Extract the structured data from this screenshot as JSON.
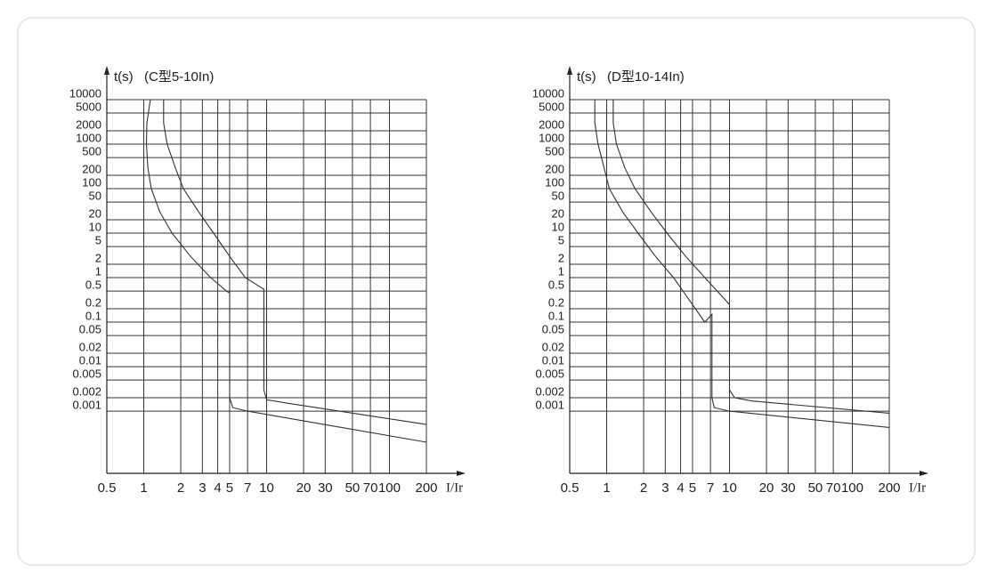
{
  "chart_data": [
    {
      "type": "line",
      "ylabel": "t(s)",
      "title": "(C型5-10In)",
      "xlabel": "I/Ir",
      "xlog": true,
      "ylog": true,
      "grid": true,
      "xlim": [
        0.5,
        200
      ],
      "ylim": [
        4e-05,
        10000
      ],
      "xticks": [
        0.5,
        1,
        2,
        3,
        4,
        5,
        7,
        10,
        20,
        30,
        50,
        70,
        100,
        200
      ],
      "yticks": [
        10000,
        5000,
        2000,
        1000,
        500,
        200,
        100,
        50,
        20,
        10,
        5,
        2,
        1,
        0.5,
        0.2,
        0.1,
        0.05,
        0.02,
        0.01,
        0.005,
        0.002,
        0.001
      ],
      "series": [
        {
          "color": "#333333",
          "x": [
            1.13,
            1.06,
            1.05,
            1.08,
            1.15,
            1.35,
            1.7,
            2.4,
            3.5,
            4.7,
            5,
            5,
            5.3,
            7,
            200
          ],
          "values": [
            10000,
            3000,
            1000,
            300,
            100,
            30,
            10,
            3,
            1,
            0.5,
            0.45,
            0.002,
            0.0012,
            0.001,
            0.0002
          ]
        },
        {
          "color": "#333333",
          "x": [
            1.45,
            1.45,
            1.55,
            1.8,
            2.1,
            2.8,
            3.7,
            5,
            6.7,
            9.5,
            9.5,
            10,
            15,
            200
          ],
          "values": [
            10000,
            3000,
            1000,
            300,
            100,
            30,
            10,
            3,
            1,
            0.55,
            0.003,
            0.0018,
            0.0015,
            0.0005
          ]
        }
      ]
    },
    {
      "type": "line",
      "ylabel": "t(s)",
      "title": "(D型10-14In)",
      "xlabel": "I/Ir",
      "xlog": true,
      "ylog": true,
      "grid": true,
      "xlim": [
        0.5,
        200
      ],
      "ylim": [
        4e-05,
        10000
      ],
      "xticks": [
        0.5,
        1,
        2,
        3,
        4,
        5,
        7,
        10,
        20,
        30,
        50,
        70,
        100,
        200
      ],
      "yticks": [
        10000,
        5000,
        2000,
        1000,
        500,
        200,
        100,
        50,
        20,
        10,
        5,
        2,
        1,
        0.5,
        0.2,
        0.1,
        0.05,
        0.02,
        0.01,
        0.005,
        0.002,
        0.001
      ],
      "series": [
        {
          "color": "#333333",
          "x": [
            0.8,
            0.8,
            0.85,
            0.95,
            1.05,
            1.35,
            1.8,
            2.5,
            3.5,
            6.3,
            7.2,
            7.2,
            7.5,
            10,
            200
          ],
          "values": [
            10000,
            3000,
            1000,
            300,
            100,
            30,
            10,
            3,
            1,
            0.1,
            0.15,
            0.002,
            0.0012,
            0.001,
            0.00043
          ]
        },
        {
          "color": "#333333",
          "x": [
            1.13,
            1.13,
            1.2,
            1.4,
            1.7,
            2.3,
            3.1,
            4.4,
            6.3,
            10,
            10,
            11,
            15,
            200
          ],
          "values": [
            10000,
            3000,
            1000,
            300,
            100,
            30,
            10,
            3,
            1,
            0.25,
            0.003,
            0.002,
            0.0017,
            0.0009
          ]
        }
      ]
    }
  ]
}
